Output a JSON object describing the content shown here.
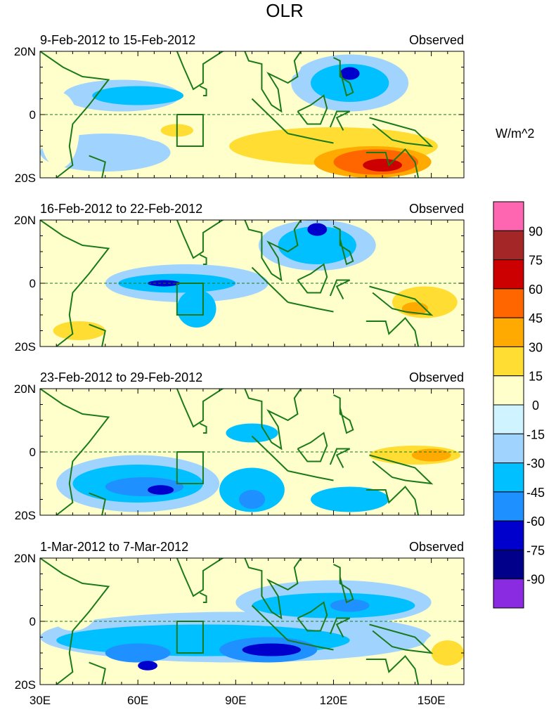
{
  "chart_data": {
    "type": "heatmap",
    "title": "OLR",
    "units_label": "W/m^2",
    "lon_range": [
      30,
      160
    ],
    "lat_range": [
      -20,
      20
    ],
    "x_ticks": [
      {
        "lon": 30,
        "label": "30E"
      },
      {
        "lon": 60,
        "label": "60E"
      },
      {
        "lon": 90,
        "label": "90E"
      },
      {
        "lon": 120,
        "label": "120E"
      },
      {
        "lon": 150,
        "label": "150E"
      }
    ],
    "y_ticks": [
      {
        "lat": 20,
        "label": "20N"
      },
      {
        "lat": 0,
        "label": "0"
      },
      {
        "lat": -20,
        "label": "20S"
      }
    ],
    "colorbar": {
      "levels": [
        "90",
        "75",
        "60",
        "45",
        "30",
        "15",
        "0",
        "-15",
        "-30",
        "-45",
        "-60",
        "-75",
        "-90"
      ],
      "colors": [
        "#ff66b2",
        "#a52626",
        "#cc0000",
        "#ff6600",
        "#ffaa00",
        "#ffdd33",
        "#ffffcc",
        "#d0f4ff",
        "#a0d4ff",
        "#00c0ff",
        "#1e90ff",
        "#0000cd",
        "#00008b",
        "#8a2be2"
      ]
    },
    "panels": [
      {
        "period": "9-Feb-2012 to 15-Feb-2012",
        "label": "Observed",
        "blobs": [
          [
            55,
            6,
            18,
            5,
            -15
          ],
          [
            60,
            6,
            14,
            3,
            -30
          ],
          [
            50,
            -12,
            20,
            6,
            -15
          ],
          [
            125,
            10,
            18,
            9,
            -15
          ],
          [
            125,
            10,
            12,
            6,
            -30
          ],
          [
            125,
            13,
            3,
            2,
            -60
          ],
          [
            72,
            -5,
            12,
            4,
            15
          ],
          [
            72,
            -5,
            5,
            2,
            30
          ],
          [
            120,
            -10,
            40,
            9,
            15
          ],
          [
            120,
            -10,
            32,
            6,
            30
          ],
          [
            132,
            -15,
            18,
            5,
            45
          ],
          [
            133,
            -15,
            13,
            4,
            60
          ],
          [
            135,
            -16,
            6,
            2,
            75
          ],
          [
            36,
            -5,
            6,
            12,
            15
          ],
          [
            95,
            15,
            15,
            5,
            15
          ]
        ]
      },
      {
        "period": "16-Feb-2012 to 22-Feb-2012",
        "label": "Observed",
        "blobs": [
          [
            75,
            0,
            25,
            6,
            -15
          ],
          [
            72,
            0,
            18,
            3,
            -30
          ],
          [
            68,
            0,
            5,
            1,
            -60
          ],
          [
            78,
            -8,
            6,
            6,
            -30
          ],
          [
            115,
            12,
            18,
            8,
            -15
          ],
          [
            115,
            12,
            12,
            6,
            -30
          ],
          [
            115,
            17,
            3,
            2,
            -60
          ],
          [
            148,
            -5,
            14,
            8,
            15
          ],
          [
            148,
            -6,
            10,
            5,
            30
          ],
          [
            145,
            -8,
            4,
            2,
            45
          ],
          [
            42,
            -14,
            12,
            5,
            15
          ],
          [
            42,
            -15,
            8,
            3,
            30
          ],
          [
            40,
            5,
            6,
            6,
            15
          ]
        ]
      },
      {
        "period": "23-Feb-2012 to 29-Feb-2012",
        "label": "Observed",
        "blobs": [
          [
            60,
            -10,
            25,
            9,
            -15
          ],
          [
            60,
            -10,
            20,
            6,
            -30
          ],
          [
            62,
            -11,
            12,
            3,
            -45
          ],
          [
            67,
            -12,
            4,
            1.5,
            -60
          ],
          [
            95,
            -12,
            10,
            7,
            -30
          ],
          [
            95,
            -15,
            4,
            3,
            -45
          ],
          [
            95,
            6,
            8,
            3,
            -30
          ],
          [
            140,
            0,
            22,
            5,
            15
          ],
          [
            145,
            -1,
            14,
            3,
            30
          ],
          [
            150,
            -1,
            6,
            2,
            45
          ],
          [
            150,
            15,
            10,
            6,
            15
          ],
          [
            115,
            -5,
            10,
            4,
            15
          ],
          [
            125,
            -15,
            12,
            4,
            -30
          ]
        ]
      },
      {
        "period": "1-Mar-2012 to 7-Mar-2012",
        "label": "Observed",
        "blobs": [
          [
            90,
            -5,
            60,
            8,
            -15
          ],
          [
            80,
            -6,
            45,
            5,
            -30
          ],
          [
            100,
            -9,
            15,
            4,
            -45
          ],
          [
            101,
            -9,
            9,
            2,
            -60
          ],
          [
            60,
            -10,
            10,
            3,
            -45
          ],
          [
            63,
            -14,
            3,
            1.5,
            -60
          ],
          [
            120,
            6,
            30,
            7,
            -15
          ],
          [
            120,
            5,
            25,
            4,
            -30
          ],
          [
            125,
            5,
            6,
            2,
            -45
          ],
          [
            155,
            -10,
            8,
            7,
            15
          ],
          [
            155,
            -10,
            5,
            4,
            30
          ],
          [
            40,
            5,
            8,
            8,
            15
          ]
        ]
      }
    ]
  }
}
